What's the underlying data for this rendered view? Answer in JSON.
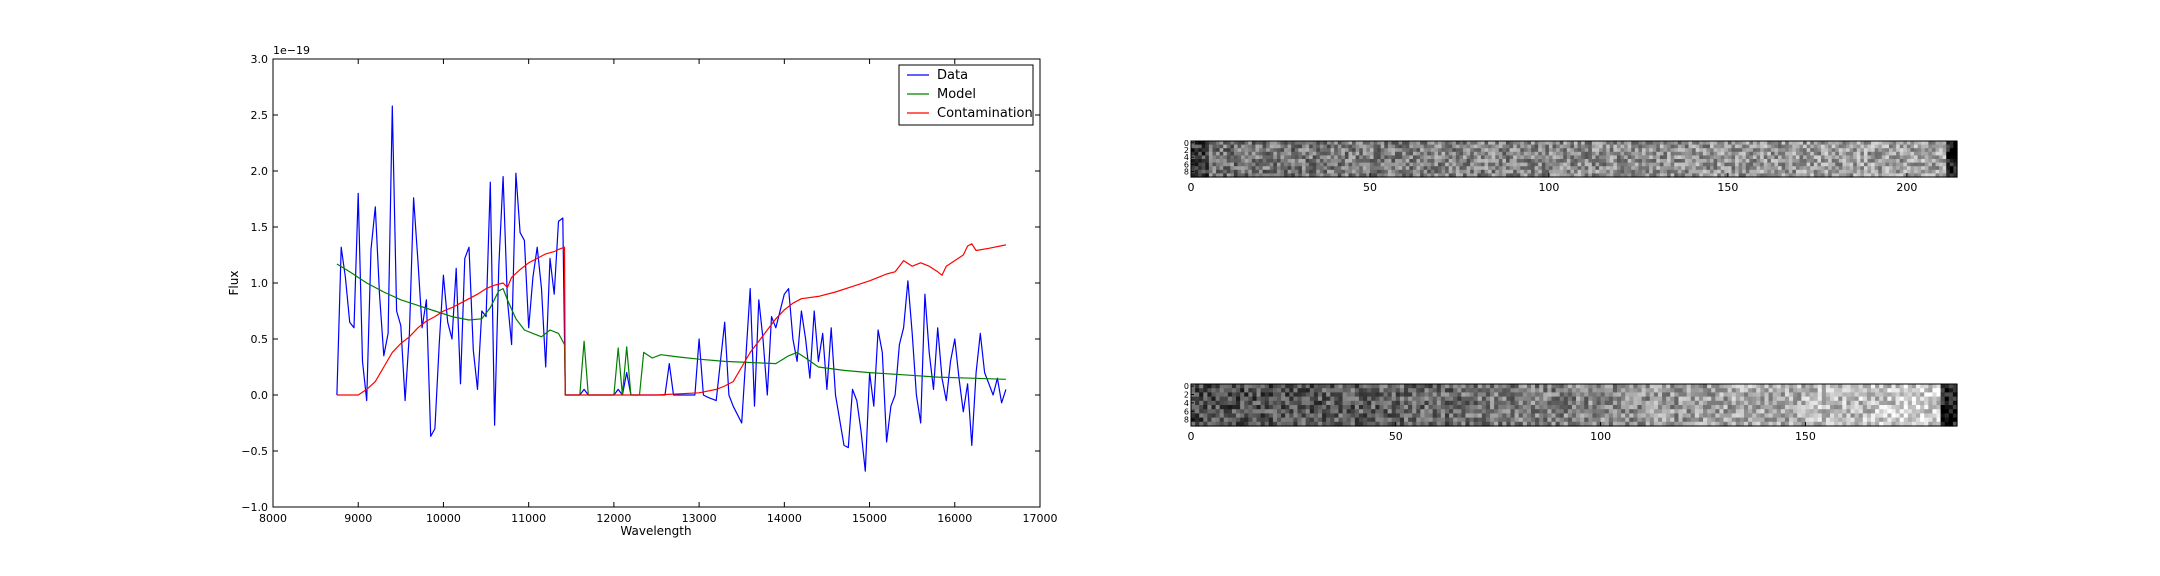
{
  "chart_data": [
    {
      "type": "line",
      "xlabel": "Wavelength",
      "ylabel": "Flux",
      "offset_text": "1e−19",
      "xlim": [
        8000,
        17000
      ],
      "ylim": [
        -1.0,
        3.0
      ],
      "xticks": [
        8000,
        9000,
        10000,
        11000,
        12000,
        13000,
        14000,
        15000,
        16000,
        17000
      ],
      "xtick_labels": [
        "8000",
        "9000",
        "10000",
        "11000",
        "12000",
        "13000",
        "14000",
        "15000",
        "16000",
        "17000"
      ],
      "yticks": [
        -1.0,
        -0.5,
        0.0,
        0.5,
        1.0,
        1.5,
        2.0,
        2.5,
        3.0
      ],
      "ytick_labels": [
        "−1.0",
        "−0.5",
        "0.0",
        "0.5",
        "1.0",
        "1.5",
        "2.0",
        "2.5",
        "3.0"
      ],
      "grid": false,
      "legend_position": "top-right",
      "series": [
        {
          "name": "Data",
          "color": "#0000ff",
          "points": [
            [
              8750,
              0.0
            ],
            [
              8800,
              1.32
            ],
            [
              8850,
              1.05
            ],
            [
              8900,
              0.65
            ],
            [
              8950,
              0.6
            ],
            [
              9000,
              1.8
            ],
            [
              9050,
              0.3
            ],
            [
              9100,
              -0.05
            ],
            [
              9150,
              1.3
            ],
            [
              9200,
              1.68
            ],
            [
              9250,
              0.9
            ],
            [
              9300,
              0.35
            ],
            [
              9350,
              0.55
            ],
            [
              9400,
              2.58
            ],
            [
              9450,
              0.75
            ],
            [
              9500,
              0.62
            ],
            [
              9550,
              -0.05
            ],
            [
              9600,
              0.55
            ],
            [
              9650,
              1.76
            ],
            [
              9700,
              1.2
            ],
            [
              9750,
              0.6
            ],
            [
              9800,
              0.85
            ],
            [
              9850,
              -0.37
            ],
            [
              9900,
              -0.3
            ],
            [
              9950,
              0.45
            ],
            [
              10000,
              1.07
            ],
            [
              10050,
              0.65
            ],
            [
              10100,
              0.5
            ],
            [
              10150,
              1.13
            ],
            [
              10200,
              0.1
            ],
            [
              10250,
              1.22
            ],
            [
              10300,
              1.32
            ],
            [
              10350,
              0.4
            ],
            [
              10400,
              0.05
            ],
            [
              10450,
              0.75
            ],
            [
              10500,
              0.7
            ],
            [
              10550,
              1.9
            ],
            [
              10600,
              -0.27
            ],
            [
              10650,
              1.15
            ],
            [
              10700,
              1.95
            ],
            [
              10750,
              0.85
            ],
            [
              10800,
              0.45
            ],
            [
              10850,
              1.98
            ],
            [
              10900,
              1.45
            ],
            [
              10950,
              1.38
            ],
            [
              11000,
              0.6
            ],
            [
              11050,
              1.05
            ],
            [
              11100,
              1.32
            ],
            [
              11150,
              0.95
            ],
            [
              11200,
              0.25
            ],
            [
              11250,
              1.22
            ],
            [
              11300,
              0.9
            ],
            [
              11350,
              1.55
            ],
            [
              11400,
              1.58
            ],
            [
              11430,
              0.0
            ],
            [
              11600,
              0.0
            ],
            [
              11650,
              0.05
            ],
            [
              11700,
              0.0
            ],
            [
              12000,
              0.0
            ],
            [
              12050,
              0.05
            ],
            [
              12100,
              0.0
            ],
            [
              12150,
              0.2
            ],
            [
              12200,
              0.0
            ],
            [
              12600,
              0.0
            ],
            [
              12650,
              0.28
            ],
            [
              12700,
              0.0
            ],
            [
              12950,
              0.0
            ],
            [
              13000,
              0.5
            ],
            [
              13050,
              0.0
            ],
            [
              13100,
              -0.02
            ],
            [
              13200,
              -0.05
            ],
            [
              13300,
              0.65
            ],
            [
              13350,
              0.0
            ],
            [
              13400,
              -0.1
            ],
            [
              13500,
              -0.25
            ],
            [
              13600,
              0.95
            ],
            [
              13650,
              -0.1
            ],
            [
              13700,
              0.85
            ],
            [
              13750,
              0.5
            ],
            [
              13800,
              0.0
            ],
            [
              13850,
              0.7
            ],
            [
              13900,
              0.6
            ],
            [
              14000,
              0.9
            ],
            [
              14050,
              0.95
            ],
            [
              14100,
              0.5
            ],
            [
              14150,
              0.3
            ],
            [
              14200,
              0.75
            ],
            [
              14250,
              0.5
            ],
            [
              14300,
              0.15
            ],
            [
              14350,
              0.75
            ],
            [
              14400,
              0.3
            ],
            [
              14450,
              0.55
            ],
            [
              14500,
              0.05
            ],
            [
              14550,
              0.6
            ],
            [
              14600,
              0.0
            ],
            [
              14700,
              -0.45
            ],
            [
              14750,
              -0.47
            ],
            [
              14800,
              0.05
            ],
            [
              14850,
              -0.05
            ],
            [
              14900,
              -0.32
            ],
            [
              14950,
              -0.68
            ],
            [
              15000,
              0.2
            ],
            [
              15050,
              -0.1
            ],
            [
              15100,
              0.58
            ],
            [
              15150,
              0.38
            ],
            [
              15200,
              -0.42
            ],
            [
              15250,
              -0.1
            ],
            [
              15300,
              0.0
            ],
            [
              15350,
              0.45
            ],
            [
              15400,
              0.6
            ],
            [
              15450,
              1.02
            ],
            [
              15500,
              0.55
            ],
            [
              15550,
              0.0
            ],
            [
              15600,
              -0.25
            ],
            [
              15650,
              0.9
            ],
            [
              15700,
              0.38
            ],
            [
              15750,
              0.05
            ],
            [
              15800,
              0.6
            ],
            [
              15850,
              0.15
            ],
            [
              15900,
              -0.05
            ],
            [
              15950,
              0.3
            ],
            [
              16000,
              0.5
            ],
            [
              16050,
              0.15
            ],
            [
              16100,
              -0.15
            ],
            [
              16150,
              0.1
            ],
            [
              16200,
              -0.45
            ],
            [
              16250,
              0.2
            ],
            [
              16300,
              0.55
            ],
            [
              16350,
              0.2
            ],
            [
              16400,
              0.1
            ],
            [
              16450,
              0.0
            ],
            [
              16500,
              0.15
            ],
            [
              16550,
              -0.07
            ],
            [
              16600,
              0.05
            ]
          ]
        },
        {
          "name": "Model",
          "color": "#008000",
          "points": [
            [
              8750,
              1.17
            ],
            [
              8900,
              1.1
            ],
            [
              9100,
              1.0
            ],
            [
              9300,
              0.92
            ],
            [
              9500,
              0.85
            ],
            [
              9700,
              0.8
            ],
            [
              9900,
              0.75
            ],
            [
              10100,
              0.7
            ],
            [
              10300,
              0.67
            ],
            [
              10450,
              0.68
            ],
            [
              10550,
              0.78
            ],
            [
              10650,
              0.93
            ],
            [
              10700,
              0.95
            ],
            [
              10750,
              0.85
            ],
            [
              10850,
              0.68
            ],
            [
              10950,
              0.58
            ],
            [
              11050,
              0.55
            ],
            [
              11150,
              0.52
            ],
            [
              11250,
              0.58
            ],
            [
              11350,
              0.55
            ],
            [
              11420,
              0.45
            ],
            [
              11430,
              0.0
            ],
            [
              11600,
              0.0
            ],
            [
              11650,
              0.48
            ],
            [
              11700,
              0.0
            ],
            [
              12000,
              0.0
            ],
            [
              12050,
              0.42
            ],
            [
              12100,
              0.0
            ],
            [
              12150,
              0.43
            ],
            [
              12200,
              0.0
            ],
            [
              12300,
              0.0
            ],
            [
              12350,
              0.38
            ],
            [
              12450,
              0.33
            ],
            [
              12550,
              0.36
            ],
            [
              12750,
              0.34
            ],
            [
              13000,
              0.32
            ],
            [
              13300,
              0.3
            ],
            [
              13600,
              0.29
            ],
            [
              13900,
              0.28
            ],
            [
              14050,
              0.35
            ],
            [
              14150,
              0.38
            ],
            [
              14250,
              0.33
            ],
            [
              14400,
              0.25
            ],
            [
              14700,
              0.22
            ],
            [
              15000,
              0.2
            ],
            [
              15400,
              0.18
            ],
            [
              15800,
              0.16
            ],
            [
              16200,
              0.15
            ],
            [
              16600,
              0.14
            ]
          ]
        },
        {
          "name": "Contamination",
          "color": "#ff0000",
          "points": [
            [
              8750,
              0.0
            ],
            [
              9000,
              0.0
            ],
            [
              9100,
              0.05
            ],
            [
              9200,
              0.12
            ],
            [
              9300,
              0.25
            ],
            [
              9400,
              0.38
            ],
            [
              9500,
              0.46
            ],
            [
              9600,
              0.52
            ],
            [
              9700,
              0.6
            ],
            [
              9800,
              0.66
            ],
            [
              9900,
              0.7
            ],
            [
              10000,
              0.75
            ],
            [
              10100,
              0.78
            ],
            [
              10200,
              0.82
            ],
            [
              10300,
              0.86
            ],
            [
              10400,
              0.9
            ],
            [
              10500,
              0.95
            ],
            [
              10600,
              0.98
            ],
            [
              10700,
              1.0
            ],
            [
              10750,
              0.96
            ],
            [
              10800,
              1.05
            ],
            [
              10900,
              1.12
            ],
            [
              11000,
              1.18
            ],
            [
              11100,
              1.22
            ],
            [
              11200,
              1.26
            ],
            [
              11300,
              1.28
            ],
            [
              11350,
              1.3
            ],
            [
              11420,
              1.32
            ],
            [
              11430,
              0.0
            ],
            [
              12000,
              0.0
            ],
            [
              12500,
              0.0
            ],
            [
              13000,
              0.02
            ],
            [
              13200,
              0.05
            ],
            [
              13300,
              0.08
            ],
            [
              13400,
              0.12
            ],
            [
              13500,
              0.25
            ],
            [
              13600,
              0.38
            ],
            [
              13700,
              0.48
            ],
            [
              13800,
              0.58
            ],
            [
              13900,
              0.68
            ],
            [
              14000,
              0.76
            ],
            [
              14100,
              0.82
            ],
            [
              14200,
              0.86
            ],
            [
              14400,
              0.88
            ],
            [
              14600,
              0.92
            ],
            [
              14800,
              0.97
            ],
            [
              15000,
              1.02
            ],
            [
              15100,
              1.05
            ],
            [
              15200,
              1.08
            ],
            [
              15300,
              1.1
            ],
            [
              15350,
              1.15
            ],
            [
              15400,
              1.2
            ],
            [
              15500,
              1.15
            ],
            [
              15600,
              1.18
            ],
            [
              15700,
              1.15
            ],
            [
              15800,
              1.1
            ],
            [
              15850,
              1.07
            ],
            [
              15900,
              1.15
            ],
            [
              16000,
              1.2
            ],
            [
              16100,
              1.25
            ],
            [
              16150,
              1.33
            ],
            [
              16200,
              1.35
            ],
            [
              16250,
              1.29
            ],
            [
              16400,
              1.31
            ],
            [
              16600,
              1.34
            ]
          ]
        }
      ]
    },
    {
      "type": "heatmap",
      "colormap": "gray",
      "xlim": [
        0,
        214
      ],
      "ylim": [
        0,
        10
      ],
      "xticks": [
        0,
        50,
        100,
        150,
        200
      ],
      "xtick_labels": [
        "0",
        "50",
        "100",
        "150",
        "200"
      ],
      "yticks": [
        0,
        2,
        4,
        6,
        8
      ],
      "ytick_labels": [
        "0",
        "2",
        "4",
        "6",
        "8"
      ]
    },
    {
      "type": "heatmap",
      "colormap": "gray",
      "xlim": [
        0,
        187
      ],
      "ylim": [
        0,
        10
      ],
      "xticks": [
        0,
        50,
        100,
        150
      ],
      "xtick_labels": [
        "0",
        "50",
        "100",
        "150"
      ],
      "yticks": [
        0,
        2,
        4,
        6,
        8
      ],
      "ytick_labels": [
        "0",
        "2",
        "4",
        "6",
        "8"
      ]
    }
  ]
}
